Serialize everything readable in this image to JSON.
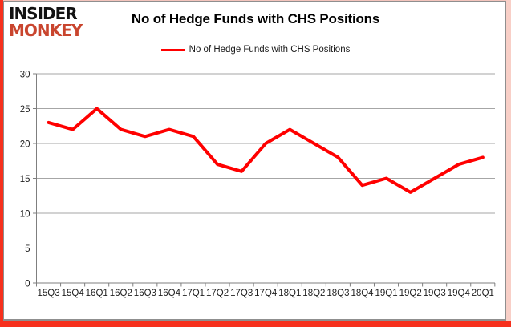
{
  "logo": {
    "line1": "INSIDER",
    "line2": "MONKEY"
  },
  "header": {
    "title": "No of Hedge Funds with CHS Positions"
  },
  "legend": {
    "label": "No of Hedge Funds with CHS Positions"
  },
  "chart_data": {
    "type": "line",
    "title": "No of Hedge Funds with CHS Positions",
    "categories": [
      "15Q3",
      "15Q4",
      "16Q1",
      "16Q2",
      "16Q3",
      "16Q4",
      "17Q1",
      "17Q2",
      "17Q3",
      "17Q4",
      "18Q1",
      "18Q2",
      "18Q3",
      "18Q4",
      "19Q1",
      "19Q2",
      "19Q3",
      "19Q4",
      "20Q1"
    ],
    "series": [
      {
        "name": "No of Hedge Funds with CHS Positions",
        "color": "#ff0000",
        "values": [
          23,
          22,
          25,
          22,
          21,
          22,
          21,
          17,
          16,
          20,
          22,
          20,
          18,
          14,
          15,
          13,
          15,
          17,
          18
        ]
      }
    ],
    "xlabel": "",
    "ylabel": "",
    "ylim": [
      0,
      30
    ],
    "yticks": [
      0,
      5,
      10,
      15,
      20,
      25,
      30
    ],
    "grid": true,
    "legend_position": "top"
  },
  "colors": {
    "line": "#ff0000",
    "grid": "#a6a6a6",
    "axis": "#7f7f7f",
    "tick_text": "#1f1f1f",
    "logo_black": "#121212",
    "logo_red": "#c9452e",
    "border_red": "#f6301d",
    "frame_gray": "#8f8f8f",
    "background": "#ffffff"
  }
}
